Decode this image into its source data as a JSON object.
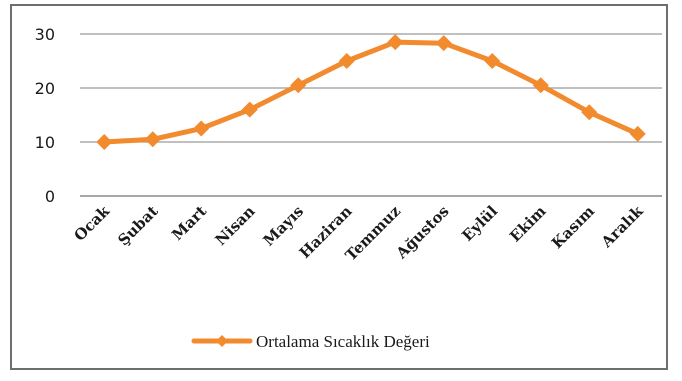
{
  "chart_data": {
    "type": "line",
    "categories": [
      "Ocak",
      "Şubat",
      "Mart",
      "Nisan",
      "Mayıs",
      "Haziran",
      "Temmuz",
      "Ağustos",
      "Eylül",
      "Ekim",
      "Kasım",
      "Aralık"
    ],
    "series": [
      {
        "name": "Ortalama Sıcaklık Değeri",
        "values": [
          10,
          10.5,
          12.5,
          16,
          20.5,
          25,
          28.5,
          28.3,
          25,
          20.5,
          15.5,
          11.5
        ],
        "color": "#f28a2e"
      }
    ],
    "y_ticks": [
      "0",
      "10",
      "20",
      "30"
    ],
    "ylim": [
      0,
      30
    ],
    "grid": true,
    "legend_position": "bottom",
    "marker": "diamond"
  }
}
